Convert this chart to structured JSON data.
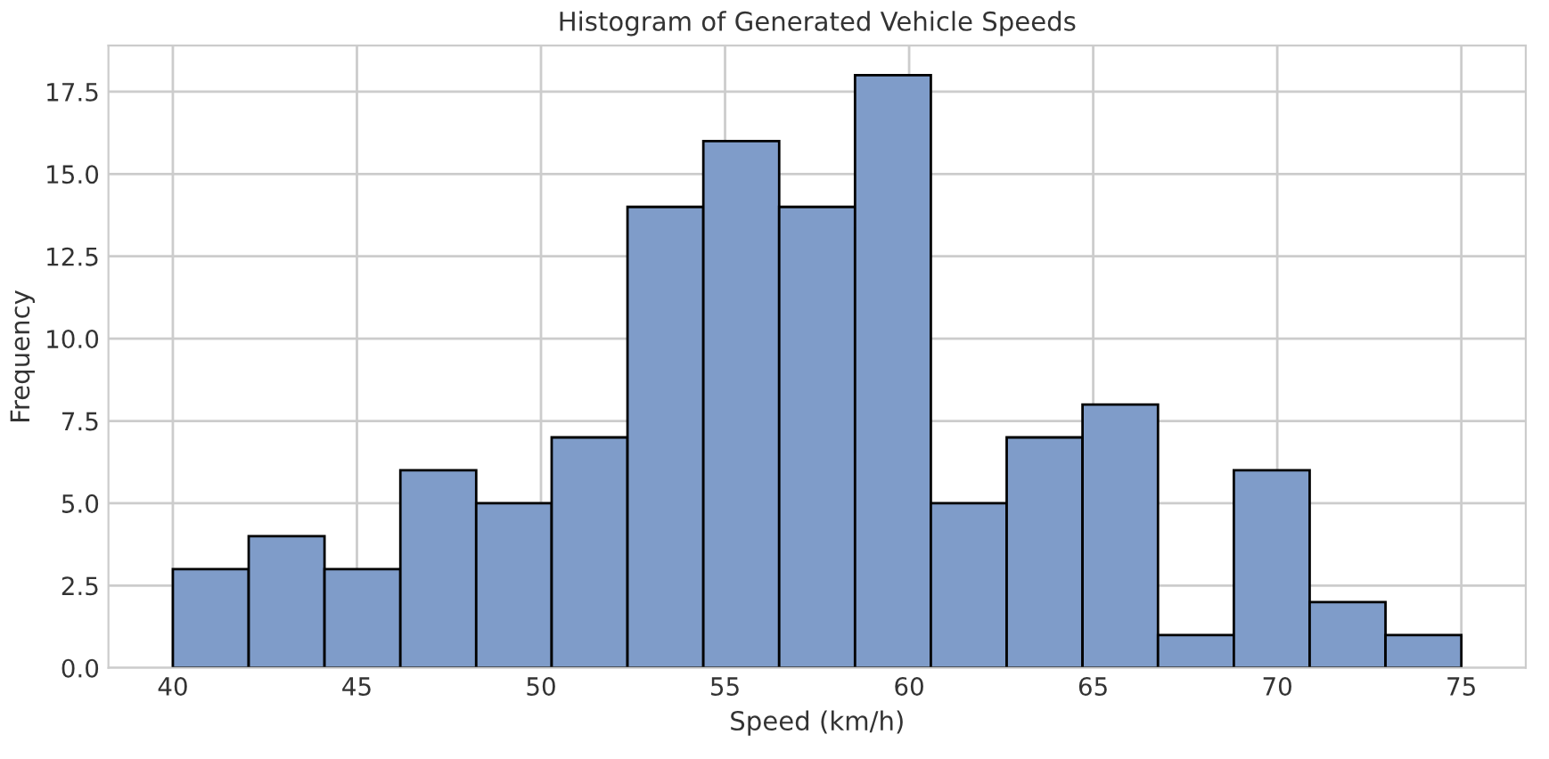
{
  "chart_data": {
    "type": "histogram",
    "title": "Histogram of Generated Vehicle Speeds",
    "xlabel": "Speed (km/h)",
    "ylabel": "Frequency",
    "bins": [
      40,
      42.06,
      44.12,
      46.18,
      48.24,
      50.29,
      52.35,
      54.41,
      56.47,
      58.53,
      60.59,
      62.65,
      64.71,
      66.76,
      68.82,
      70.88,
      72.94,
      75
    ],
    "values": [
      3,
      4,
      3,
      6,
      5,
      7,
      14,
      16,
      14,
      18,
      5,
      7,
      8,
      1,
      6,
      2,
      1
    ],
    "color": "#7f9cc9",
    "xlim": [
      38.25,
      76.75
    ],
    "xticks": [
      40,
      45,
      50,
      55,
      60,
      65,
      70,
      75
    ],
    "ylim": [
      0,
      18.9
    ],
    "yticks": [
      {
        "value": 0,
        "label": "0.0"
      },
      {
        "value": 2.5,
        "label": "2.5"
      },
      {
        "value": 5,
        "label": "5.0"
      },
      {
        "value": 7.5,
        "label": "7.5"
      },
      {
        "value": 10,
        "label": "10.0"
      },
      {
        "value": 12.5,
        "label": "12.5"
      },
      {
        "value": 15,
        "label": "15.0"
      },
      {
        "value": 17.5,
        "label": "17.5"
      }
    ],
    "grid": true
  }
}
